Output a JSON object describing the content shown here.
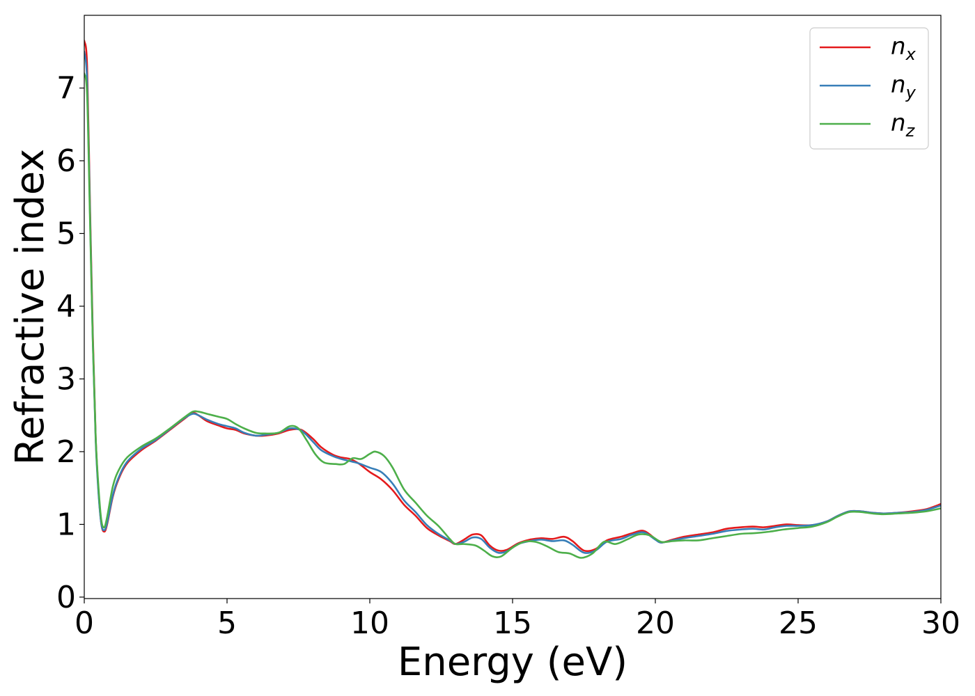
{
  "chart_data": {
    "type": "line",
    "title": "",
    "xlabel": "Energy (eV)",
    "ylabel": "Refractive index",
    "xlim": [
      0,
      30
    ],
    "ylim": [
      -0.02,
      8.0
    ],
    "xticks": [
      0,
      5,
      10,
      15,
      20,
      25,
      30
    ],
    "yticks": [
      0,
      1,
      2,
      3,
      4,
      5,
      6,
      7
    ],
    "grid": false,
    "legend_position": "top-right",
    "series": [
      {
        "name": "n_x",
        "label_base": "n",
        "label_sub": "x",
        "color": "#e41a1c",
        "points": [
          [
            0,
            7.65
          ],
          [
            0.1,
            7.3
          ],
          [
            0.2,
            5.4
          ],
          [
            0.3,
            3.6
          ],
          [
            0.4,
            2.2
          ],
          [
            0.5,
            1.45
          ],
          [
            0.6,
            1.0
          ],
          [
            0.7,
            0.9
          ],
          [
            0.8,
            1.0
          ],
          [
            1.0,
            1.38
          ],
          [
            1.2,
            1.62
          ],
          [
            1.5,
            1.84
          ],
          [
            2.0,
            2.02
          ],
          [
            2.5,
            2.15
          ],
          [
            3.0,
            2.3
          ],
          [
            3.5,
            2.45
          ],
          [
            3.8,
            2.53
          ],
          [
            4.0,
            2.5
          ],
          [
            4.3,
            2.42
          ],
          [
            4.7,
            2.36
          ],
          [
            5.0,
            2.32
          ],
          [
            5.3,
            2.3
          ],
          [
            5.6,
            2.25
          ],
          [
            6.0,
            2.22
          ],
          [
            6.3,
            2.22
          ],
          [
            6.8,
            2.25
          ],
          [
            7.2,
            2.3
          ],
          [
            7.6,
            2.3
          ],
          [
            8.0,
            2.18
          ],
          [
            8.3,
            2.06
          ],
          [
            8.7,
            1.96
          ],
          [
            9.0,
            1.92
          ],
          [
            9.3,
            1.9
          ],
          [
            9.6,
            1.84
          ],
          [
            10.0,
            1.72
          ],
          [
            10.4,
            1.62
          ],
          [
            10.8,
            1.47
          ],
          [
            11.2,
            1.27
          ],
          [
            11.6,
            1.12
          ],
          [
            12.0,
            0.95
          ],
          [
            12.4,
            0.85
          ],
          [
            12.8,
            0.77
          ],
          [
            13.0,
            0.73
          ],
          [
            13.3,
            0.79
          ],
          [
            13.6,
            0.86
          ],
          [
            13.9,
            0.85
          ],
          [
            14.2,
            0.71
          ],
          [
            14.5,
            0.64
          ],
          [
            14.8,
            0.65
          ],
          [
            15.2,
            0.74
          ],
          [
            15.6,
            0.79
          ],
          [
            16.0,
            0.81
          ],
          [
            16.4,
            0.8
          ],
          [
            16.8,
            0.83
          ],
          [
            17.1,
            0.77
          ],
          [
            17.5,
            0.64
          ],
          [
            17.9,
            0.66
          ],
          [
            18.3,
            0.78
          ],
          [
            18.8,
            0.83
          ],
          [
            19.2,
            0.88
          ],
          [
            19.6,
            0.91
          ],
          [
            20.0,
            0.8
          ],
          [
            20.2,
            0.75
          ],
          [
            20.6,
            0.79
          ],
          [
            21.0,
            0.83
          ],
          [
            21.5,
            0.86
          ],
          [
            22.0,
            0.89
          ],
          [
            22.5,
            0.94
          ],
          [
            23.0,
            0.96
          ],
          [
            23.4,
            0.97
          ],
          [
            23.8,
            0.96
          ],
          [
            24.2,
            0.98
          ],
          [
            24.6,
            1.0
          ],
          [
            25.0,
            0.99
          ],
          [
            25.5,
            0.99
          ],
          [
            26.0,
            1.04
          ],
          [
            26.4,
            1.12
          ],
          [
            26.8,
            1.18
          ],
          [
            27.2,
            1.18
          ],
          [
            27.6,
            1.16
          ],
          [
            28.0,
            1.15
          ],
          [
            28.5,
            1.16
          ],
          [
            29.0,
            1.18
          ],
          [
            29.5,
            1.21
          ],
          [
            30.0,
            1.28
          ]
        ]
      },
      {
        "name": "n_y",
        "label_base": "n",
        "label_sub": "y",
        "color": "#377eb8",
        "points": [
          [
            0,
            7.5
          ],
          [
            0.1,
            7.1
          ],
          [
            0.2,
            5.3
          ],
          [
            0.3,
            3.5
          ],
          [
            0.4,
            2.15
          ],
          [
            0.5,
            1.42
          ],
          [
            0.6,
            1.0
          ],
          [
            0.7,
            0.92
          ],
          [
            0.8,
            1.02
          ],
          [
            1.0,
            1.4
          ],
          [
            1.2,
            1.64
          ],
          [
            1.5,
            1.86
          ],
          [
            2.0,
            2.04
          ],
          [
            2.5,
            2.16
          ],
          [
            3.0,
            2.31
          ],
          [
            3.5,
            2.46
          ],
          [
            3.8,
            2.52
          ],
          [
            4.0,
            2.5
          ],
          [
            4.3,
            2.44
          ],
          [
            4.7,
            2.38
          ],
          [
            5.0,
            2.35
          ],
          [
            5.3,
            2.32
          ],
          [
            5.6,
            2.26
          ],
          [
            6.0,
            2.22
          ],
          [
            6.3,
            2.23
          ],
          [
            6.8,
            2.26
          ],
          [
            7.2,
            2.32
          ],
          [
            7.6,
            2.29
          ],
          [
            8.0,
            2.14
          ],
          [
            8.3,
            2.02
          ],
          [
            8.7,
            1.94
          ],
          [
            9.0,
            1.9
          ],
          [
            9.3,
            1.87
          ],
          [
            9.6,
            1.84
          ],
          [
            10.0,
            1.78
          ],
          [
            10.4,
            1.72
          ],
          [
            10.8,
            1.56
          ],
          [
            11.2,
            1.33
          ],
          [
            11.6,
            1.17
          ],
          [
            12.0,
            0.99
          ],
          [
            12.4,
            0.87
          ],
          [
            12.8,
            0.78
          ],
          [
            13.0,
            0.73
          ],
          [
            13.3,
            0.76
          ],
          [
            13.6,
            0.82
          ],
          [
            13.9,
            0.8
          ],
          [
            14.2,
            0.68
          ],
          [
            14.5,
            0.61
          ],
          [
            14.8,
            0.63
          ],
          [
            15.2,
            0.73
          ],
          [
            15.6,
            0.77
          ],
          [
            16.0,
            0.79
          ],
          [
            16.4,
            0.77
          ],
          [
            16.8,
            0.78
          ],
          [
            17.1,
            0.72
          ],
          [
            17.5,
            0.61
          ],
          [
            17.9,
            0.64
          ],
          [
            18.3,
            0.76
          ],
          [
            18.8,
            0.8
          ],
          [
            19.2,
            0.86
          ],
          [
            19.6,
            0.89
          ],
          [
            20.0,
            0.79
          ],
          [
            20.2,
            0.75
          ],
          [
            20.6,
            0.78
          ],
          [
            21.0,
            0.81
          ],
          [
            21.5,
            0.84
          ],
          [
            22.0,
            0.87
          ],
          [
            22.5,
            0.91
          ],
          [
            23.0,
            0.93
          ],
          [
            23.4,
            0.94
          ],
          [
            23.8,
            0.93
          ],
          [
            24.2,
            0.96
          ],
          [
            24.6,
            0.98
          ],
          [
            25.0,
            0.98
          ],
          [
            25.5,
            0.99
          ],
          [
            26.0,
            1.04
          ],
          [
            26.4,
            1.12
          ],
          [
            26.8,
            1.18
          ],
          [
            27.2,
            1.18
          ],
          [
            27.6,
            1.16
          ],
          [
            28.0,
            1.15
          ],
          [
            28.5,
            1.16
          ],
          [
            29.0,
            1.17
          ],
          [
            29.5,
            1.2
          ],
          [
            30.0,
            1.26
          ]
        ]
      },
      {
        "name": "n_z",
        "label_base": "n",
        "label_sub": "z",
        "color": "#4daf4a",
        "points": [
          [
            0,
            7.2
          ],
          [
            0.1,
            6.9
          ],
          [
            0.2,
            5.2
          ],
          [
            0.3,
            3.5
          ],
          [
            0.4,
            2.2
          ],
          [
            0.5,
            1.5
          ],
          [
            0.6,
            1.05
          ],
          [
            0.7,
            0.96
          ],
          [
            0.8,
            1.1
          ],
          [
            1.0,
            1.52
          ],
          [
            1.2,
            1.74
          ],
          [
            1.5,
            1.92
          ],
          [
            2.0,
            2.07
          ],
          [
            2.5,
            2.18
          ],
          [
            3.0,
            2.32
          ],
          [
            3.5,
            2.47
          ],
          [
            3.8,
            2.55
          ],
          [
            4.0,
            2.55
          ],
          [
            4.3,
            2.52
          ],
          [
            4.7,
            2.48
          ],
          [
            5.0,
            2.45
          ],
          [
            5.3,
            2.38
          ],
          [
            5.6,
            2.32
          ],
          [
            6.0,
            2.26
          ],
          [
            6.3,
            2.25
          ],
          [
            6.8,
            2.26
          ],
          [
            7.2,
            2.35
          ],
          [
            7.5,
            2.32
          ],
          [
            7.8,
            2.15
          ],
          [
            8.1,
            1.96
          ],
          [
            8.4,
            1.85
          ],
          [
            8.8,
            1.83
          ],
          [
            9.1,
            1.83
          ],
          [
            9.4,
            1.91
          ],
          [
            9.7,
            1.9
          ],
          [
            10.0,
            1.97
          ],
          [
            10.2,
            2.0
          ],
          [
            10.5,
            1.94
          ],
          [
            10.8,
            1.78
          ],
          [
            11.2,
            1.48
          ],
          [
            11.6,
            1.3
          ],
          [
            12.0,
            1.12
          ],
          [
            12.4,
            0.98
          ],
          [
            12.8,
            0.8
          ],
          [
            13.0,
            0.73
          ],
          [
            13.3,
            0.73
          ],
          [
            13.7,
            0.71
          ],
          [
            14.0,
            0.64
          ],
          [
            14.3,
            0.56
          ],
          [
            14.6,
            0.56
          ],
          [
            15.0,
            0.68
          ],
          [
            15.4,
            0.76
          ],
          [
            15.8,
            0.76
          ],
          [
            16.2,
            0.7
          ],
          [
            16.6,
            0.62
          ],
          [
            17.0,
            0.6
          ],
          [
            17.4,
            0.54
          ],
          [
            17.8,
            0.6
          ],
          [
            18.2,
            0.76
          ],
          [
            18.6,
            0.73
          ],
          [
            19.0,
            0.79
          ],
          [
            19.4,
            0.86
          ],
          [
            19.8,
            0.85
          ],
          [
            20.2,
            0.76
          ],
          [
            20.6,
            0.77
          ],
          [
            21.0,
            0.78
          ],
          [
            21.5,
            0.78
          ],
          [
            22.0,
            0.81
          ],
          [
            22.5,
            0.84
          ],
          [
            23.0,
            0.87
          ],
          [
            23.5,
            0.88
          ],
          [
            24.0,
            0.9
          ],
          [
            24.5,
            0.93
          ],
          [
            25.0,
            0.95
          ],
          [
            25.5,
            0.97
          ],
          [
            26.0,
            1.03
          ],
          [
            26.4,
            1.11
          ],
          [
            26.8,
            1.17
          ],
          [
            27.2,
            1.17
          ],
          [
            27.6,
            1.15
          ],
          [
            28.0,
            1.14
          ],
          [
            28.5,
            1.15
          ],
          [
            29.0,
            1.16
          ],
          [
            29.5,
            1.18
          ],
          [
            30.0,
            1.22
          ]
        ]
      }
    ]
  }
}
